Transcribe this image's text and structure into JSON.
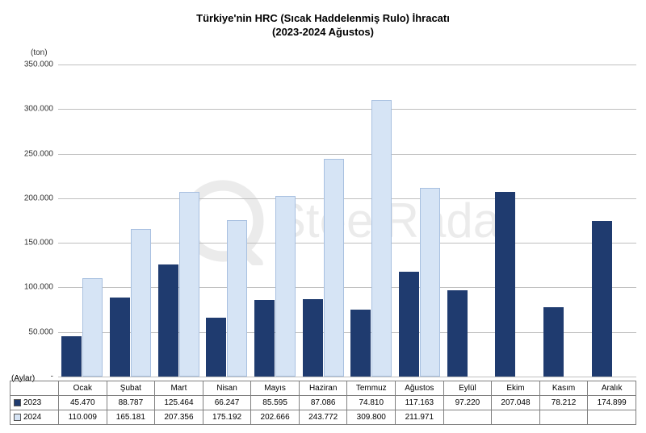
{
  "title_line1": "Türkiye'nin HRC (Sıcak Haddelenmiş Rulo) İhracatı",
  "title_line2": "(2023-2024 Ağustos)",
  "unit_label": "(ton)",
  "aylar_label": "(Aylar)",
  "watermark_text": "SteelRadar",
  "chart": {
    "type": "bar",
    "ylim_min": 0,
    "ylim_max": 350000,
    "ytick_step": 50000,
    "grid_color": "#bfbfbf",
    "background_color": "#ffffff",
    "months": [
      "Ocak",
      "Şubat",
      "Mart",
      "Nisan",
      "Mayıs",
      "Haziran",
      "Temmuz",
      "Ağustos",
      "Eylül",
      "Ekim",
      "Kasım",
      "Aralık"
    ],
    "series": [
      {
        "name": "2023",
        "color": "#1f3b6f",
        "values": [
          45470,
          88787,
          125464,
          66247,
          85595,
          87086,
          74810,
          117163,
          97220,
          207048,
          78212,
          174899
        ],
        "labels": [
          "45.470",
          "88.787",
          "125.464",
          "66.247",
          "85.595",
          "87.086",
          "74.810",
          "117.163",
          "97.220",
          "207.048",
          "78.212",
          "174.899"
        ]
      },
      {
        "name": "2024",
        "color": "#d6e4f5",
        "values": [
          110009,
          165181,
          207356,
          175192,
          202666,
          243772,
          309800,
          211971,
          null,
          null,
          null,
          null
        ],
        "labels": [
          "110.009",
          "165.181",
          "207.356",
          "175.192",
          "202.666",
          "243.772",
          "309.800",
          "211.971",
          "",
          "",
          "",
          ""
        ]
      }
    ],
    "yticks": [
      {
        "v": 0,
        "label": "-"
      },
      {
        "v": 50000,
        "label": "50.000"
      },
      {
        "v": 100000,
        "label": "100.000"
      },
      {
        "v": 150000,
        "label": "150.000"
      },
      {
        "v": 200000,
        "label": "200.000"
      },
      {
        "v": 250000,
        "label": "250.000"
      },
      {
        "v": 300000,
        "label": "300.000"
      },
      {
        "v": 350000,
        "label": "350.000"
      }
    ],
    "title_fontsize": 13,
    "tick_fontsize": 10
  }
}
